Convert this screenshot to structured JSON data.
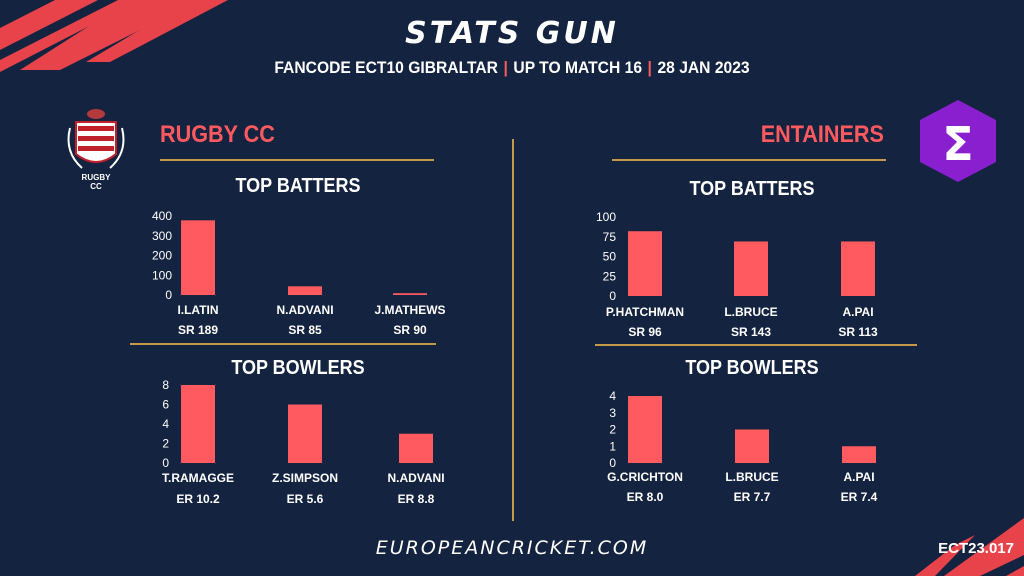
{
  "header": {
    "title": "STATS GUN",
    "subtitle_parts": [
      "FANCODE ECT10 GIBRALTAR",
      "UP TO MATCH  16",
      "28 JAN 2023"
    ]
  },
  "teams": {
    "left": {
      "name": "RUGBY CC",
      "logo_text_1": "RUGBY",
      "logo_text_2": "CC"
    },
    "right": {
      "name": "ENTAINERS",
      "logo_symbol": "Σ"
    }
  },
  "sections": {
    "top_batters": "TOP BATTERS",
    "top_bowlers": "TOP BOWLERS"
  },
  "footer": {
    "site": "EUROPEANCRICKET.COM",
    "code": "ECT23.017"
  },
  "colors": {
    "background": "#14233f",
    "bar": "#ff5a5f",
    "accent": "#ff5a5f",
    "gold": "#c49a4a"
  },
  "chart_data": [
    {
      "id": "rugby-batters",
      "type": "bar",
      "title": "TOP BATTERS",
      "categories": [
        "I.LATIN",
        "N.ADVANI",
        "J.MATHEWS"
      ],
      "values": [
        378,
        44,
        9
      ],
      "sub_labels": [
        "SR 189",
        "SR 85",
        "SR 90"
      ],
      "ylim": [
        0,
        400
      ],
      "yticks": [
        0,
        100,
        200,
        300,
        400
      ]
    },
    {
      "id": "rugby-bowlers",
      "type": "bar",
      "title": "TOP BOWLERS",
      "categories": [
        "T.RAMAGGE",
        "Z.SIMPSON",
        "N.ADVANI"
      ],
      "values": [
        8,
        6,
        3
      ],
      "sub_labels": [
        "ER 10.2",
        "ER 5.6",
        "ER 8.8"
      ],
      "ylim": [
        0,
        8
      ],
      "yticks": [
        0,
        2,
        4,
        6,
        8
      ]
    },
    {
      "id": "entainers-batters",
      "type": "bar",
      "title": "TOP BATTERS",
      "categories": [
        "P.HATCHMAN",
        "L.BRUCE",
        "A.PAI"
      ],
      "values": [
        82,
        69,
        69
      ],
      "sub_labels": [
        "SR 96",
        "SR 143",
        "SR 113"
      ],
      "ylim": [
        0,
        100
      ],
      "yticks": [
        0,
        25,
        50,
        75,
        100
      ]
    },
    {
      "id": "entainers-bowlers",
      "type": "bar",
      "title": "TOP BOWLERS",
      "categories": [
        "G.CRICHTON",
        "L.BRUCE",
        "A.PAI"
      ],
      "values": [
        4,
        2,
        1
      ],
      "sub_labels": [
        "ER 8.0",
        "ER 7.7",
        "ER 7.4"
      ],
      "ylim": [
        0,
        4
      ],
      "yticks": [
        0,
        1,
        2,
        3,
        4
      ]
    }
  ]
}
